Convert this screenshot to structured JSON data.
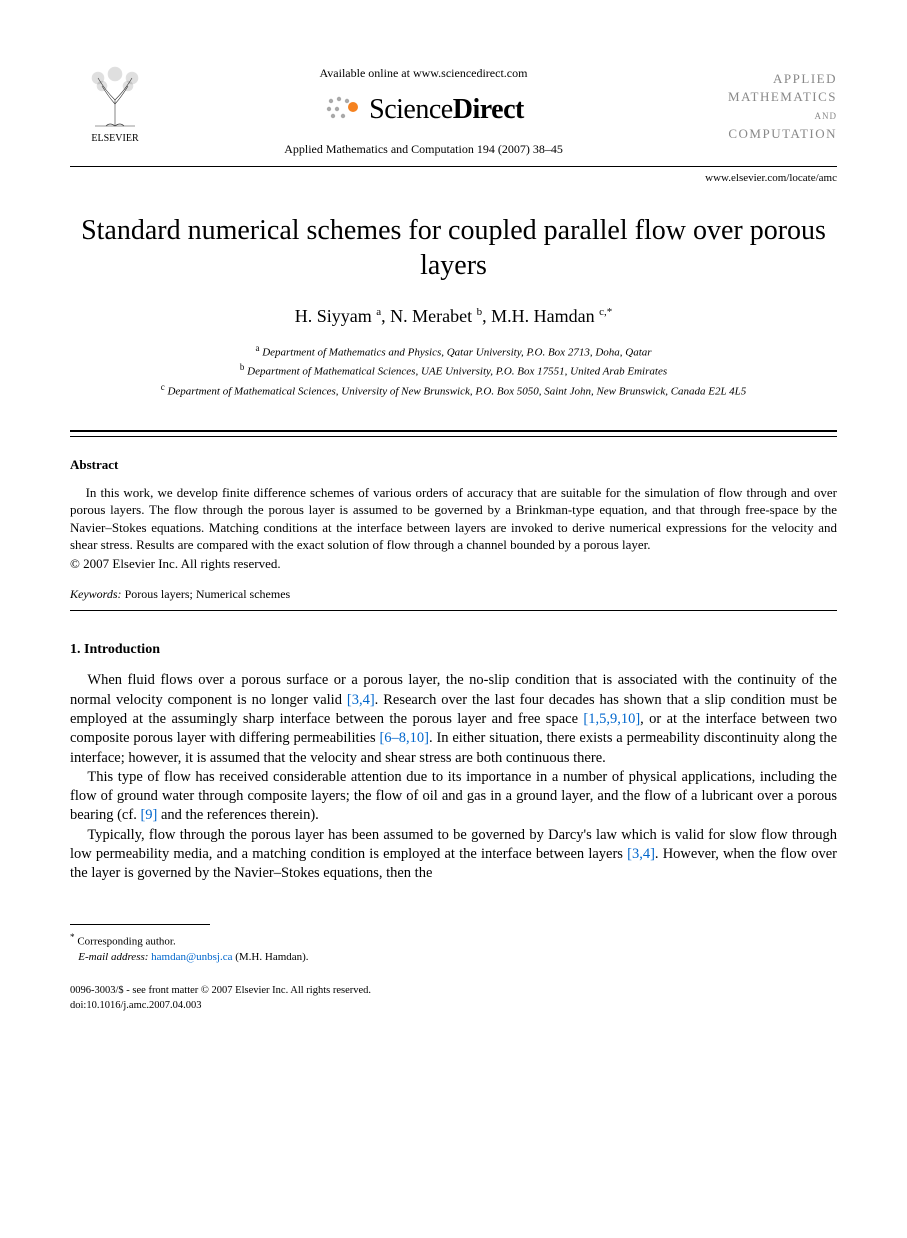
{
  "header": {
    "publisher_name": "ELSEVIER",
    "available_text": "Available online at www.sciencedirect.com",
    "sd_brand_prefix": "Science",
    "sd_brand_suffix": "Direct",
    "journal_reference": "Applied Mathematics and Computation 194 (2007) 38–45",
    "journal_cover_line1": "APPLIED",
    "journal_cover_line2": "MATHEMATICS",
    "journal_cover_and": "AND",
    "journal_cover_line3": "COMPUTATION",
    "locate_url": "www.elsevier.com/locate/amc"
  },
  "title": "Standard numerical schemes for coupled parallel flow over porous layers",
  "authors_html": "H. Siyyam <sup>a</sup>, N. Merabet <sup>b</sup>, M.H. Hamdan <sup>c,*</sup>",
  "affiliations": {
    "a": "Department of Mathematics and Physics, Qatar University, P.O. Box 2713, Doha, Qatar",
    "b": "Department of Mathematical Sciences, UAE University, P.O. Box 17551, United Arab Emirates",
    "c": "Department of Mathematical Sciences, University of New Brunswick, P.O. Box 5050, Saint John, New Brunswick, Canada E2L 4L5"
  },
  "abstract": {
    "heading": "Abstract",
    "text": "In this work, we develop finite difference schemes of various orders of accuracy that are suitable for the simulation of flow through and over porous layers. The flow through the porous layer is assumed to be governed by a Brinkman-type equation, and that through free-space by the Navier–Stokes equations. Matching conditions at the interface between layers are invoked to derive numerical expressions for the velocity and shear stress. Results are compared with the exact solution of flow through a channel bounded by a porous layer.",
    "copyright": "© 2007 Elsevier Inc. All rights reserved."
  },
  "keywords": {
    "label": "Keywords:",
    "text": " Porous layers; Numerical schemes"
  },
  "section1": {
    "heading": "1. Introduction",
    "p1_pre": "When fluid flows over a porous surface or a porous layer, the no-slip condition that is associated with the continuity of the normal velocity component is no longer valid ",
    "p1_cite1": "[3,4]",
    "p1_mid1": ". Research over the last four decades has shown that a slip condition must be employed at the assumingly sharp interface between the porous layer and free space ",
    "p1_cite2": "[1,5,9,10]",
    "p1_mid2": ", or at the interface between two composite porous layer with differing permeabilities ",
    "p1_cite3": "[6–8,10]",
    "p1_post": ". In either situation, there exists a permeability discontinuity along the interface; however, it is assumed that the velocity and shear stress are both continuous there.",
    "p2_pre": "This type of flow has received considerable attention due to its importance in a number of physical applications, including the flow of ground water through composite layers; the flow of oil and gas in a ground layer, and the flow of a lubricant over a porous bearing (cf. ",
    "p2_cite1": "[9]",
    "p2_post": " and the references therein).",
    "p3_pre": "Typically, flow through the porous layer has been assumed to be governed by Darcy's law which is valid for slow flow through low permeability media, and a matching condition is employed at the interface between layers ",
    "p3_cite1": "[3,4]",
    "p3_post": ". However, when the flow over the layer is governed by the Navier–Stokes equations, then the"
  },
  "footnote": {
    "corresponding": "Corresponding author.",
    "email_label": "E-mail address:",
    "email": "hamdan@unbsj.ca",
    "email_attribution": " (M.H. Hamdan)."
  },
  "doi": {
    "line1": "0096-3003/$ - see front matter © 2007 Elsevier Inc. All rights reserved.",
    "line2": "doi:10.1016/j.amc.2007.04.003"
  },
  "colors": {
    "citation": "#0066cc",
    "cover_text": "#888888",
    "sd_orange": "#f58220",
    "sd_grey": "#a9a9a9"
  }
}
